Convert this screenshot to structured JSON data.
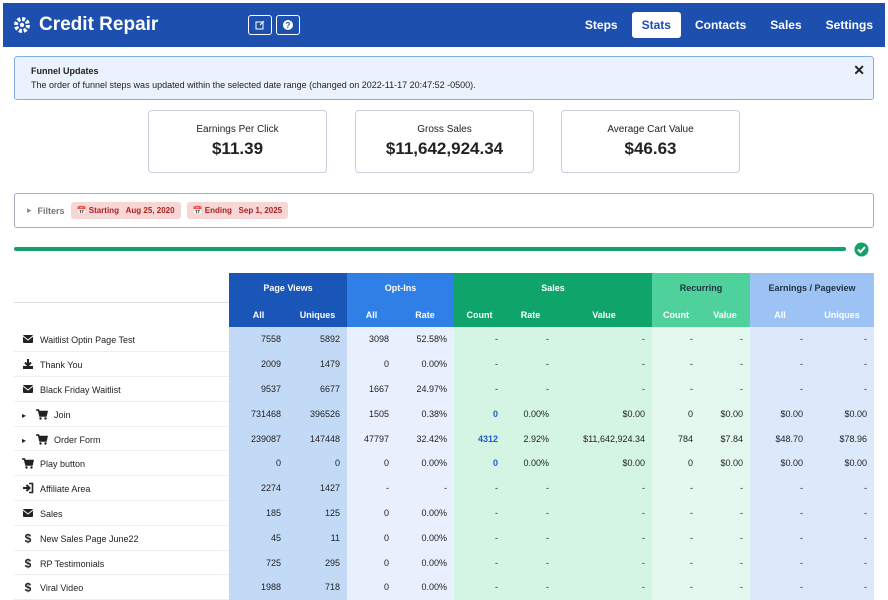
{
  "header": {
    "title": "Credit Repair",
    "nav": [
      "Steps",
      "Stats",
      "Contacts",
      "Sales",
      "Settings"
    ]
  },
  "alert": {
    "title": "Funnel Updates",
    "message": "The order of funnel steps was updated within the selected date range (changed on 2022-11-17 20:47:52 -0500)."
  },
  "stats": [
    {
      "label": "Earnings Per Click",
      "value": "$11.39"
    },
    {
      "label": "Gross Sales",
      "value": "$11,642,924.34"
    },
    {
      "label": "Average Cart Value",
      "value": "$46.63"
    }
  ],
  "filters": {
    "label": "Filters",
    "start_label": "Starting",
    "start_date": "Aug 25, 2020",
    "end_label": "Ending",
    "end_date": "Sep 1, 2025"
  },
  "table": {
    "groups": [
      {
        "label": "Page Views",
        "columns": [
          "All",
          "Uniques"
        ]
      },
      {
        "label": "Opt-Ins",
        "columns": [
          "All",
          "Rate"
        ]
      },
      {
        "label": "Sales",
        "columns": [
          "Count",
          "Rate",
          "Value"
        ]
      },
      {
        "label": "Recurring",
        "columns": [
          "Count",
          "Value"
        ]
      },
      {
        "label": "Earnings / Pageview",
        "columns": [
          "All",
          "Uniques"
        ]
      }
    ],
    "rows": [
      {
        "name": "Waitlist Optin Page Test",
        "cells": [
          "7558",
          "5892",
          "3098",
          "52.58%",
          "-",
          "-",
          "-",
          "-",
          "-",
          "-",
          "-"
        ]
      },
      {
        "name": "Thank You",
        "cells": [
          "2009",
          "1479",
          "0",
          "0.00%",
          "-",
          "-",
          "-",
          "-",
          "-",
          "-",
          "-"
        ]
      },
      {
        "name": "Black Friday Waitlist",
        "cells": [
          "9537",
          "6677",
          "1667",
          "24.97%",
          "-",
          "-",
          "-",
          "-",
          "-",
          "-",
          "-"
        ]
      },
      {
        "name": "Join",
        "cells": [
          "731468",
          "396526",
          "1505",
          "0.38%",
          "0",
          "0.00%",
          "$0.00",
          "0",
          "$0.00",
          "$0.00",
          "$0.00"
        ]
      },
      {
        "name": "Order Form",
        "cells": [
          "239087",
          "147448",
          "47797",
          "32.42%",
          "4312",
          "2.92%",
          "$11,642,924.34",
          "784",
          "$7.84",
          "$48.70",
          "$78.96"
        ]
      },
      {
        "name": "Play button",
        "cells": [
          "0",
          "0",
          "0",
          "0.00%",
          "0",
          "0.00%",
          "$0.00",
          "0",
          "$0.00",
          "$0.00",
          "$0.00"
        ]
      },
      {
        "name": "Affiliate Area",
        "cells": [
          "2274",
          "1427",
          "-",
          "-",
          "-",
          "-",
          "-",
          "-",
          "-",
          "-",
          "-"
        ]
      },
      {
        "name": "Sales",
        "cells": [
          "185",
          "125",
          "0",
          "0.00%",
          "-",
          "-",
          "-",
          "-",
          "-",
          "-",
          "-"
        ]
      },
      {
        "name": "New Sales Page June22",
        "cells": [
          "45",
          "11",
          "0",
          "0.00%",
          "-",
          "-",
          "-",
          "-",
          "-",
          "-",
          "-"
        ]
      },
      {
        "name": "RP Testimonials",
        "cells": [
          "725",
          "295",
          "0",
          "0.00%",
          "-",
          "-",
          "-",
          "-",
          "-",
          "-",
          "-"
        ]
      },
      {
        "name": "Viral Video",
        "cells": [
          "1988",
          "718",
          "0",
          "0.00%",
          "-",
          "-",
          "-",
          "-",
          "-",
          "-",
          "-"
        ]
      }
    ]
  }
}
